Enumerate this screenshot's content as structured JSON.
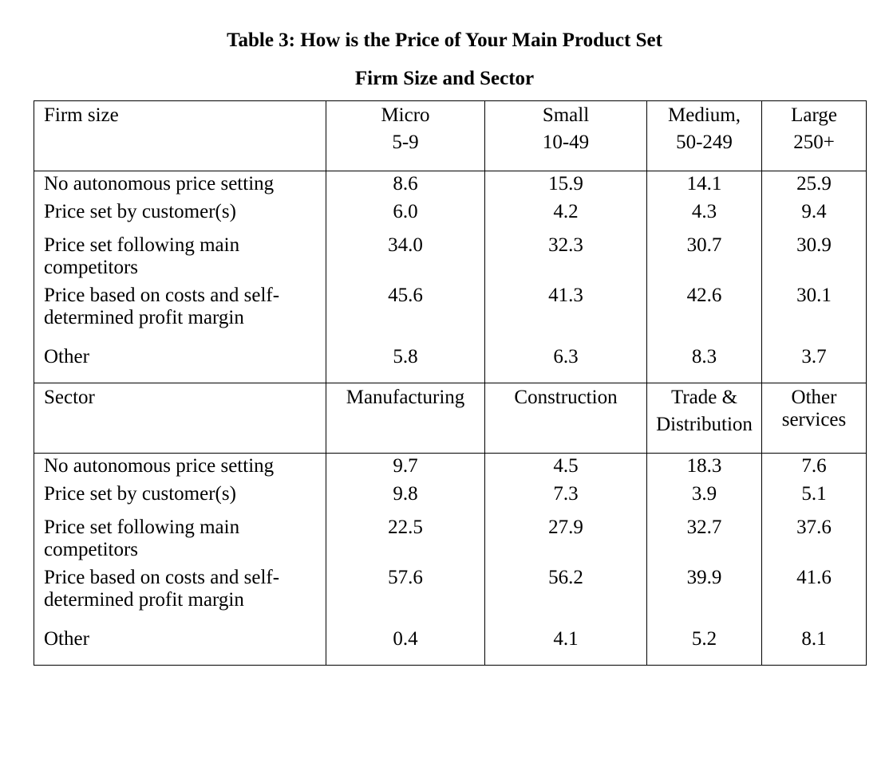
{
  "title_line1": "Table 3: How is the Price of Your Main Product Set",
  "title_line2": "Firm Size and Sector",
  "size_header": {
    "label": "Firm size",
    "cols": [
      {
        "l1": "Micro",
        "l2": "5-9"
      },
      {
        "l1": "Small",
        "l2": "10-49"
      },
      {
        "l1": "Medium,",
        "l2": "50-249"
      },
      {
        "l1": "Large",
        "l2": "250+"
      }
    ]
  },
  "size_rows": [
    {
      "label": "No autonomous price setting",
      "values": [
        "8.6",
        "15.9",
        "14.1",
        "25.9"
      ]
    },
    {
      "label": "Price set by customer(s)",
      "values": [
        "6.0",
        "4.2",
        "4.3",
        "9.4"
      ]
    },
    {
      "label": "Price set following main competitors",
      "values": [
        "34.0",
        "32.3",
        "30.7",
        "30.9"
      ]
    },
    {
      "label": "Price based on costs and self-determined profit margin",
      "values": [
        "45.6",
        "41.3",
        "42.6",
        "30.1"
      ]
    },
    {
      "label": "Other",
      "values": [
        "5.8",
        "6.3",
        "8.3",
        "3.7"
      ]
    }
  ],
  "sector_header": {
    "label": "Sector",
    "cols": [
      {
        "l1": "Manufacturing",
        "l2": ""
      },
      {
        "l1": "Construction",
        "l2": ""
      },
      {
        "l1": "Trade &",
        "l2": "Distribution"
      },
      {
        "l1": "Other",
        "l2": "services"
      }
    ]
  },
  "sector_rows": [
    {
      "label": "No autonomous price setting",
      "values": [
        "9.7",
        "4.5",
        "18.3",
        "7.6"
      ]
    },
    {
      "label": "Price set by customer(s)",
      "values": [
        "9.8",
        "7.3",
        "3.9",
        "5.1"
      ]
    },
    {
      "label": "Price set following main competitors",
      "values": [
        "22.5",
        "27.9",
        "32.7",
        "37.6"
      ]
    },
    {
      "label": "Price based on costs and self-determined profit margin",
      "values": [
        "57.6",
        "56.2",
        "39.9",
        "41.6"
      ]
    },
    {
      "label": "Other",
      "values": [
        "0.4",
        "4.1",
        "5.2",
        "8.1"
      ]
    }
  ]
}
